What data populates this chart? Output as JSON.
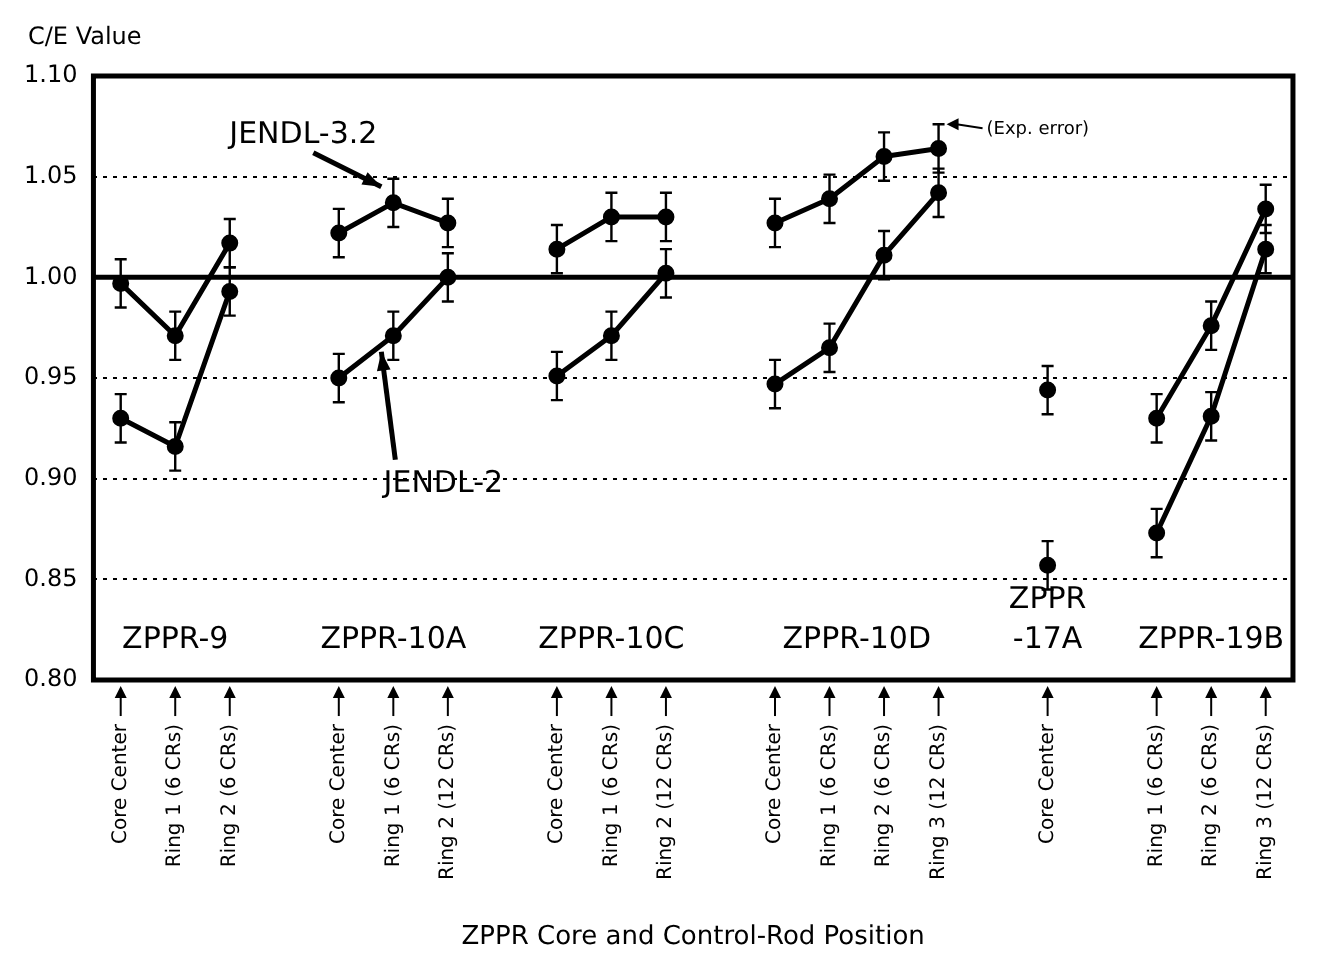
{
  "chart_data": {
    "type": "line",
    "ylabel": "C/E Value",
    "xlabel": "ZPPR Core and Control-Rod Position",
    "categories": [
      "Core Center",
      "Ring 1 (6 CRs)",
      "Ring 2 (6 CRs)",
      null,
      "Core Center",
      "Ring 1 (6 CRs)",
      "Ring 2 (12 CRs)",
      null,
      "Core Center",
      "Ring 1 (6 CRs)",
      "Ring 2 (12 CRs)",
      null,
      "Core Center",
      "Ring 1 (6 CRs)",
      "Ring 2 (6 CRs)",
      "Ring 3 (12 CRs)",
      null,
      "Core Center",
      null,
      "Ring 1 (6 CRs)",
      "Ring 2 (6 CRs)",
      "Ring 3 (12 CRs)"
    ],
    "series": [
      {
        "name": "JENDL-3.2",
        "color": "#000000",
        "values": [
          0.997,
          0.971,
          1.017,
          null,
          1.022,
          1.037,
          1.027,
          null,
          1.014,
          1.03,
          1.03,
          null,
          1.027,
          1.039,
          1.06,
          1.064,
          null,
          0.944,
          null,
          0.93,
          0.976,
          1.034
        ],
        "errors": [
          0.012,
          0.012,
          0.012,
          null,
          0.012,
          0.012,
          0.012,
          null,
          0.012,
          0.012,
          0.012,
          null,
          0.012,
          0.012,
          0.012,
          0.012,
          null,
          0.012,
          null,
          0.012,
          0.012,
          0.012
        ]
      },
      {
        "name": "JENDL-2",
        "color": "#000000",
        "values": [
          0.93,
          0.916,
          0.993,
          null,
          0.95,
          0.971,
          1.0,
          null,
          0.951,
          0.971,
          1.002,
          null,
          0.947,
          0.965,
          1.011,
          1.042,
          null,
          0.857,
          null,
          0.873,
          0.931,
          1.014
        ],
        "errors": [
          0.012,
          0.012,
          0.012,
          null,
          0.012,
          0.012,
          0.012,
          null,
          0.012,
          0.012,
          0.012,
          null,
          0.012,
          0.012,
          0.012,
          0.012,
          null,
          0.012,
          null,
          0.012,
          0.012,
          0.012
        ]
      }
    ],
    "ylim": [
      0.8,
      1.1
    ],
    "yticks": [
      {
        "value": 0.8,
        "label": "0.80"
      },
      {
        "value": 0.85,
        "label": "0.85"
      },
      {
        "value": 0.9,
        "label": "0.90"
      },
      {
        "value": 0.95,
        "label": "0.95"
      },
      {
        "value": 1.0,
        "label": "1.00"
      },
      {
        "value": 1.05,
        "label": "1.05"
      },
      {
        "value": 1.1,
        "label": "1.10"
      }
    ],
    "grid": "y",
    "legend": false,
    "marker": "circle",
    "line_style": "solid",
    "ref_lines": [
      {
        "axis": "y",
        "value": 1.0,
        "color": "#000000",
        "line_style": "solid"
      }
    ],
    "annotations": [
      "ZPPR-9",
      "ZPPR-10A",
      "ZPPR-10C",
      "ZPPR-10D",
      "ZPPR -17A",
      "ZPPR-19B",
      "(Exp. error)"
    ]
  }
}
